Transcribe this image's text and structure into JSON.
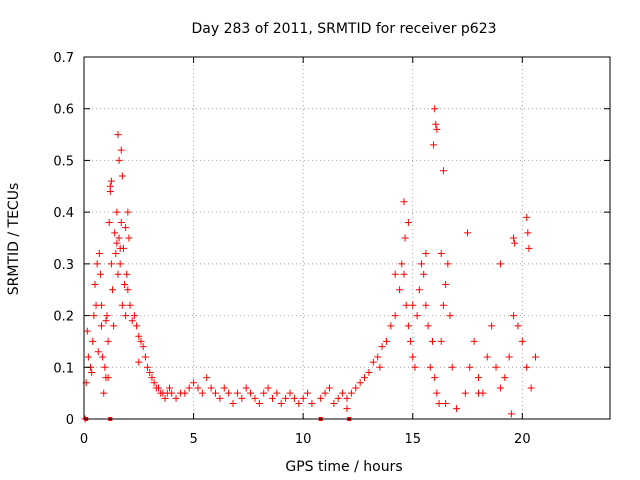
{
  "chart_data": {
    "type": "scatter",
    "title": "Day 283 of 2011, SRMTID for receiver p623",
    "xlabel": "GPS time / hours",
    "ylabel": "SRMTID / TECUs",
    "xlim": [
      0,
      24
    ],
    "ylim": [
      0,
      0.7
    ],
    "xticks": [
      0,
      5,
      10,
      15,
      20
    ],
    "yticks": [
      0,
      0.1,
      0.2,
      0.3,
      0.4,
      0.5,
      0.6,
      0.7
    ],
    "xtick_labels": [
      "0",
      "5",
      "10",
      "15",
      "20"
    ],
    "ytick_labels": [
      "0",
      "0.1",
      "0.2",
      "0.3",
      "0.4",
      "0.5",
      "0.6",
      "0.7"
    ],
    "grid": true,
    "marker": "+",
    "series": [
      {
        "name": "SRMTID",
        "color": "#ff0000",
        "x": [
          0.05,
          0.1,
          0.2,
          0.3,
          0.35,
          0.4,
          0.45,
          0.5,
          0.55,
          0.6,
          0.65,
          0.7,
          0.75,
          0.8,
          0.85,
          0.9,
          0.95,
          1.0,
          1.05,
          1.1,
          1.15,
          1.2,
          1.25,
          1.3,
          1.35,
          1.4,
          1.45,
          1.5,
          1.55,
          1.6,
          1.65,
          1.7,
          1.75,
          1.8,
          1.85,
          1.9,
          1.95,
          2.0,
          2.1,
          2.2,
          2.3,
          2.4,
          2.5,
          2.6,
          2.7,
          2.8,
          2.9,
          3.0,
          3.1,
          3.2,
          3.3,
          3.4,
          3.5,
          3.6,
          3.7,
          3.8,
          3.9,
          4.0,
          4.2,
          4.4,
          4.6,
          4.8,
          5.0,
          5.2,
          5.4,
          5.6,
          5.8,
          6.0,
          6.2,
          6.4,
          6.6,
          6.8,
          7.0,
          7.2,
          7.4,
          7.6,
          7.8,
          8.0,
          8.2,
          8.4,
          8.6,
          8.8,
          9.0,
          9.2,
          9.4,
          9.6,
          9.8,
          10.0,
          10.2,
          10.4,
          10.8,
          11.0,
          11.2,
          11.4,
          11.6,
          11.8,
          12.0,
          12.2,
          12.4,
          12.6,
          12.8,
          13.0,
          13.2,
          13.4,
          13.6,
          13.8,
          14.0,
          14.2,
          14.4,
          14.5,
          14.6,
          14.7,
          14.8,
          14.9,
          15.0,
          15.1,
          15.2,
          15.3,
          15.4,
          15.5,
          15.6,
          15.7,
          15.8,
          15.9,
          16.0,
          16.1,
          16.2,
          16.3,
          16.4,
          16.5,
          16.6,
          16.7,
          16.8,
          17.0,
          17.4,
          17.6,
          17.8,
          18.0,
          18.2,
          18.4,
          18.6,
          18.8,
          19.0,
          19.2,
          19.4,
          19.6,
          19.8,
          20.0,
          20.2,
          20.4,
          20.6,
          1.55,
          1.6,
          1.7,
          1.75,
          1.2,
          1.25,
          1.5,
          1.65,
          2.0,
          2.05,
          1.9,
          14.6,
          14.65,
          15.6,
          16.0,
          16.05,
          16.1,
          15.95,
          14.8,
          16.4,
          16.3,
          19.6,
          19.65,
          20.2,
          20.25,
          20.3,
          17.5,
          19.0,
          0.15,
          0.8,
          1.0,
          1.1,
          2.5,
          12.0,
          13.5,
          14.2,
          15.0,
          16.5,
          18.0,
          19.5
        ],
        "y": [
          0.0,
          0.07,
          0.12,
          0.1,
          0.09,
          0.15,
          0.2,
          0.26,
          0.22,
          0.3,
          0.13,
          0.32,
          0.28,
          0.18,
          0.12,
          0.05,
          0.1,
          0.08,
          0.2,
          0.15,
          0.38,
          0.45,
          0.3,
          0.25,
          0.18,
          0.36,
          0.32,
          0.4,
          0.28,
          0.35,
          0.3,
          0.38,
          0.22,
          0.33,
          0.26,
          0.2,
          0.28,
          0.25,
          0.22,
          0.19,
          0.2,
          0.18,
          0.16,
          0.15,
          0.14,
          0.12,
          0.1,
          0.09,
          0.08,
          0.07,
          0.06,
          0.06,
          0.05,
          0.05,
          0.04,
          0.05,
          0.06,
          0.05,
          0.04,
          0.05,
          0.05,
          0.06,
          0.07,
          0.06,
          0.05,
          0.08,
          0.06,
          0.05,
          0.04,
          0.06,
          0.05,
          0.03,
          0.05,
          0.04,
          0.06,
          0.05,
          0.04,
          0.03,
          0.05,
          0.06,
          0.04,
          0.05,
          0.03,
          0.04,
          0.05,
          0.04,
          0.03,
          0.04,
          0.05,
          0.03,
          0.04,
          0.05,
          0.06,
          0.03,
          0.04,
          0.05,
          0.04,
          0.05,
          0.06,
          0.07,
          0.08,
          0.09,
          0.11,
          0.12,
          0.14,
          0.15,
          0.18,
          0.2,
          0.25,
          0.3,
          0.28,
          0.22,
          0.18,
          0.15,
          0.12,
          0.1,
          0.2,
          0.25,
          0.3,
          0.28,
          0.22,
          0.18,
          0.1,
          0.15,
          0.08,
          0.05,
          0.03,
          0.15,
          0.22,
          0.26,
          0.3,
          0.2,
          0.1,
          0.02,
          0.05,
          0.1,
          0.15,
          0.08,
          0.05,
          0.12,
          0.18,
          0.1,
          0.06,
          0.08,
          0.12,
          0.2,
          0.18,
          0.15,
          0.1,
          0.06,
          0.12,
          0.55,
          0.5,
          0.52,
          0.47,
          0.44,
          0.46,
          0.34,
          0.33,
          0.4,
          0.35,
          0.37,
          0.42,
          0.35,
          0.32,
          0.6,
          0.57,
          0.56,
          0.53,
          0.38,
          0.48,
          0.32,
          0.35,
          0.34,
          0.39,
          0.36,
          0.33,
          0.36,
          0.3,
          0.17,
          0.22,
          0.19,
          0.08,
          0.11,
          0.02,
          0.1,
          0.28,
          0.22,
          0.03,
          0.05,
          0.01
        ]
      }
    ],
    "baseline_markers_x": [
      0.1,
      1.2,
      10.8,
      12.1
    ]
  }
}
